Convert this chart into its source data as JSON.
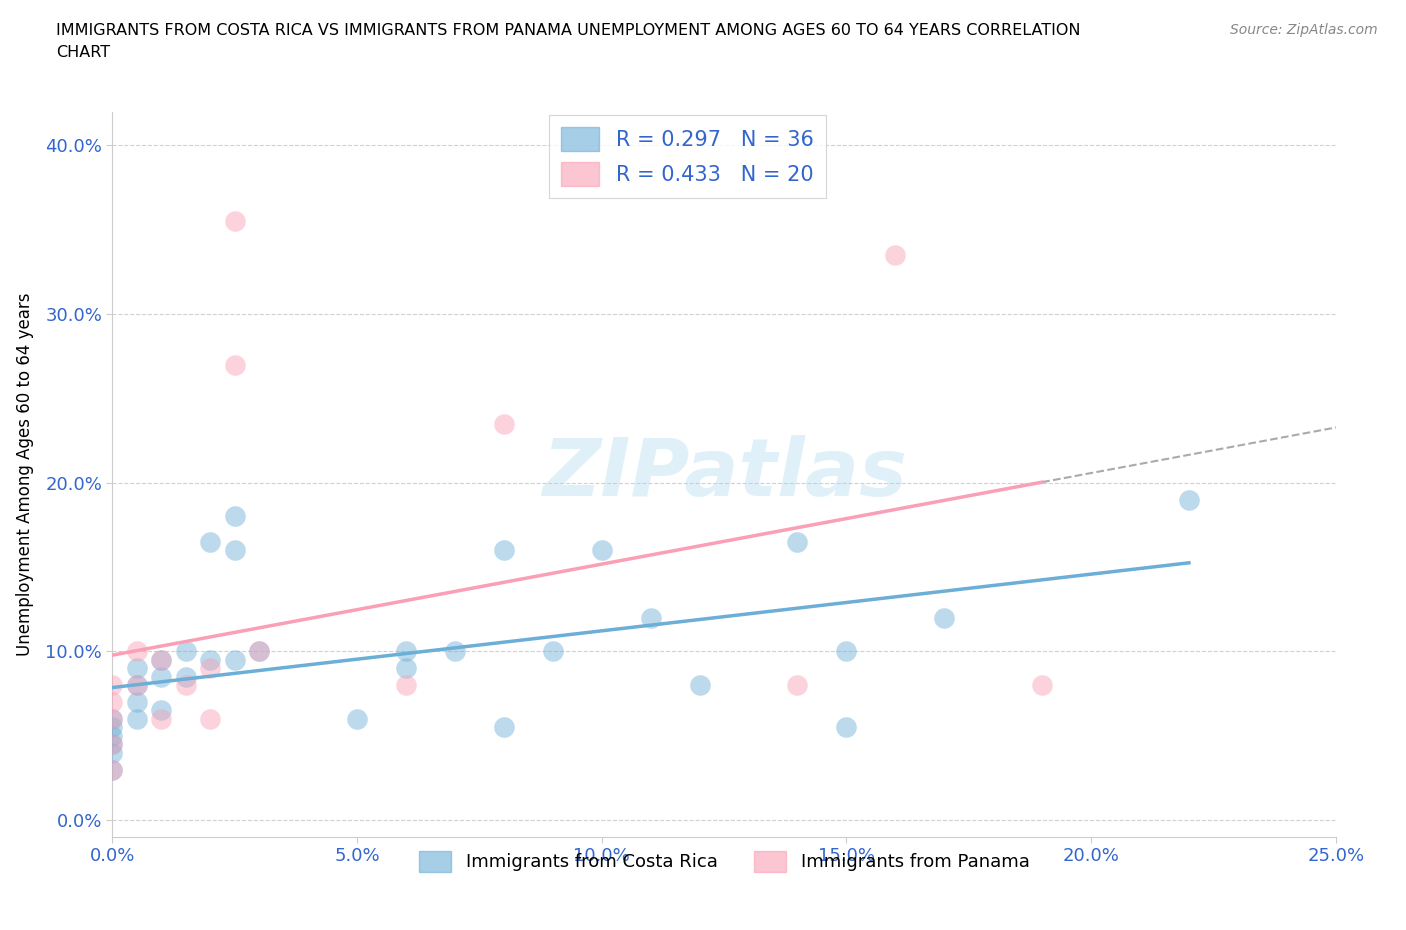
{
  "title_line1": "IMMIGRANTS FROM COSTA RICA VS IMMIGRANTS FROM PANAMA UNEMPLOYMENT AMONG AGES 60 TO 64 YEARS CORRELATION",
  "title_line2": "CHART",
  "source": "Source: ZipAtlas.com",
  "ylabel": "Unemployment Among Ages 60 to 64 years",
  "xlim": [
    0.0,
    0.25
  ],
  "ylim": [
    -0.01,
    0.42
  ],
  "xticks": [
    0.0,
    0.05,
    0.1,
    0.15,
    0.2,
    0.25
  ],
  "yticks": [
    0.0,
    0.1,
    0.2,
    0.3,
    0.4
  ],
  "ytick_labels": [
    "0.0%",
    "10.0%",
    "20.0%",
    "30.0%",
    "40.0%"
  ],
  "xtick_labels": [
    "0.0%",
    "5.0%",
    "10.0%",
    "15.0%",
    "20.0%",
    "25.0%"
  ],
  "watermark": "ZIPatlas",
  "costa_rica_color": "#6baed6",
  "panama_color": "#fa9fb5",
  "costa_rica_R": 0.297,
  "costa_rica_N": 36,
  "panama_R": 0.433,
  "panama_N": 20,
  "costa_rica_x": [
    0.0,
    0.0,
    0.0,
    0.0,
    0.0,
    0.0,
    0.005,
    0.005,
    0.005,
    0.005,
    0.01,
    0.01,
    0.01,
    0.015,
    0.015,
    0.02,
    0.02,
    0.025,
    0.025,
    0.025,
    0.03,
    0.05,
    0.06,
    0.06,
    0.07,
    0.08,
    0.08,
    0.09,
    0.1,
    0.11,
    0.12,
    0.14,
    0.15,
    0.15,
    0.17,
    0.22
  ],
  "costa_rica_y": [
    0.06,
    0.055,
    0.05,
    0.045,
    0.04,
    0.03,
    0.09,
    0.08,
    0.07,
    0.06,
    0.095,
    0.085,
    0.065,
    0.1,
    0.085,
    0.165,
    0.095,
    0.18,
    0.16,
    0.095,
    0.1,
    0.06,
    0.1,
    0.09,
    0.1,
    0.16,
    0.055,
    0.1,
    0.16,
    0.12,
    0.08,
    0.165,
    0.1,
    0.055,
    0.12,
    0.19
  ],
  "panama_x": [
    0.0,
    0.0,
    0.0,
    0.0,
    0.0,
    0.005,
    0.005,
    0.01,
    0.01,
    0.015,
    0.02,
    0.02,
    0.025,
    0.025,
    0.03,
    0.06,
    0.08,
    0.14,
    0.16,
    0.19
  ],
  "panama_y": [
    0.08,
    0.07,
    0.06,
    0.045,
    0.03,
    0.1,
    0.08,
    0.095,
    0.06,
    0.08,
    0.09,
    0.06,
    0.355,
    0.27,
    0.1,
    0.08,
    0.235,
    0.08,
    0.335,
    0.08
  ],
  "legend_label_cr": "Immigrants from Costa Rica",
  "legend_label_pa": "Immigrants from Panama"
}
